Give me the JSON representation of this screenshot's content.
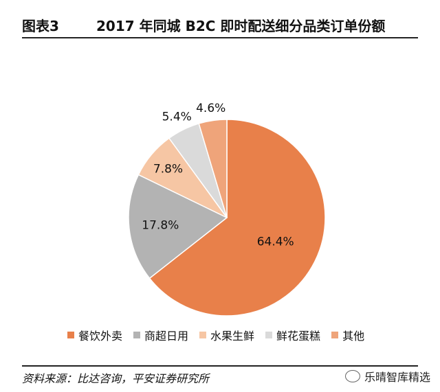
{
  "header": {
    "figure_number": "图表3",
    "title": "2017 年同城 B2C 即时配送细分品类订单份额"
  },
  "chart_data": {
    "type": "pie",
    "title": "2017 年同城 B2C 即时配送细分品类订单份额",
    "slices": [
      {
        "name": "餐饮外卖",
        "value": 64.4,
        "label": "64.4%",
        "color": "#E8804A"
      },
      {
        "name": "商超日用",
        "value": 17.8,
        "label": "17.8%",
        "color": "#B3B3B3"
      },
      {
        "name": "水果生鲜",
        "value": 7.8,
        "label": "7.8%",
        "color": "#F6C6A4"
      },
      {
        "name": "鲜花蛋糕",
        "value": 5.4,
        "label": "5.4%",
        "color": "#DADADA"
      },
      {
        "name": "其他",
        "value": 4.6,
        "label": "4.6%",
        "color": "#EFA47A"
      }
    ],
    "start": "12 o'clock",
    "direction": "clockwise",
    "legend_position": "bottom"
  },
  "footer": {
    "source": "资料来源：比达咨询，平安证券研究所",
    "watermark": "乐晴智库精选"
  }
}
